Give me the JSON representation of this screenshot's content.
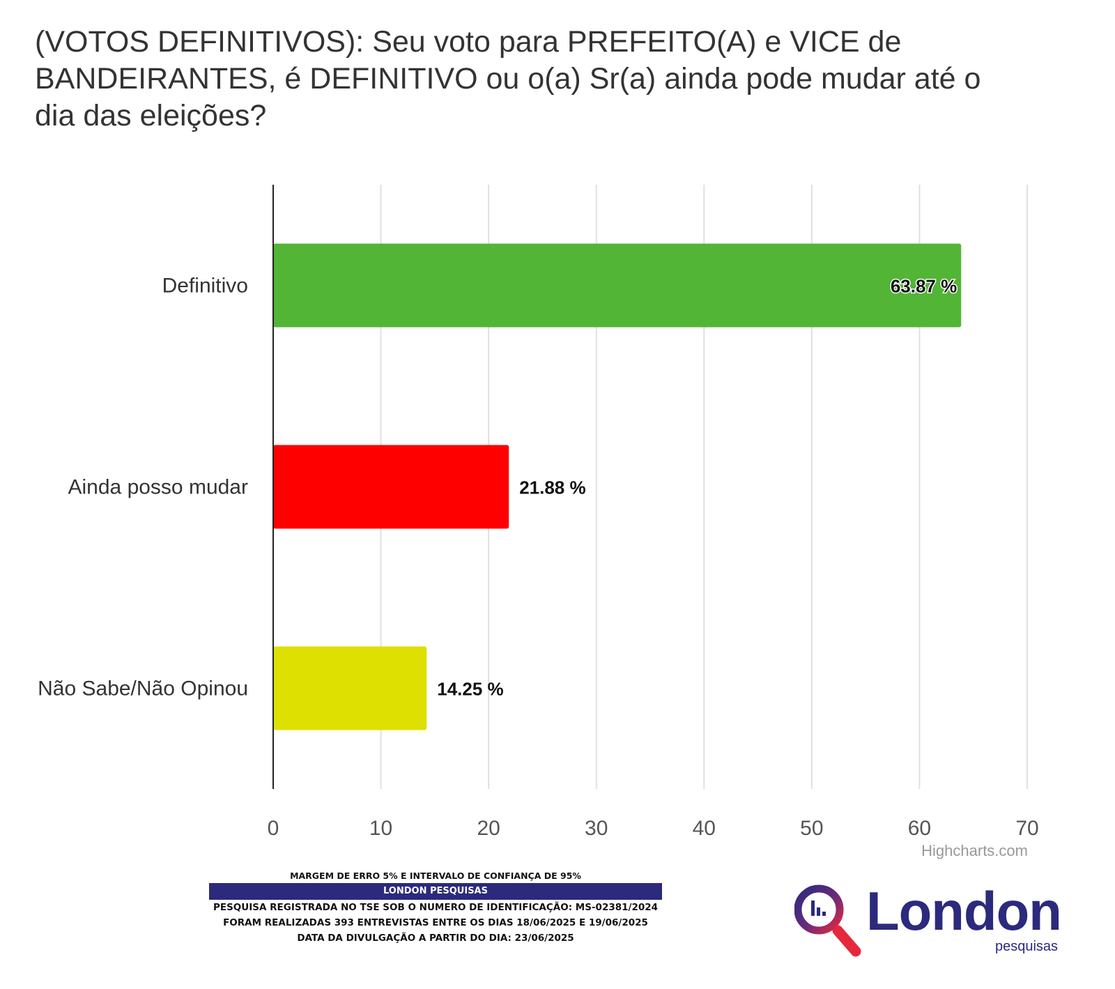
{
  "chart_data": {
    "type": "bar",
    "orientation": "horizontal",
    "title": "(VOTOS DEFINITIVOS): Seu voto para PREFEITO(A) e VICE de BANDEIRANTES, é DEFINITIVO ou o(a) Sr(a) ainda pode mudar até o dia das eleições?",
    "categories": [
      "Definitivo",
      "Ainda posso mudar",
      "Não Sabe/Não Opinou"
    ],
    "values": [
      63.87,
      21.88,
      14.25
    ],
    "data_labels": [
      "63.87 %",
      "21.88 %",
      "14.25 %"
    ],
    "colors": [
      "#52b535",
      "#ff0000",
      "#dde000"
    ],
    "xlim": [
      0,
      70
    ],
    "ticks": [
      0,
      10,
      20,
      30,
      40,
      50,
      60,
      70
    ],
    "xlabel": "",
    "ylabel": "",
    "grid": true,
    "legend": false
  },
  "credits": "Highcharts.com",
  "footer": {
    "margin_text": "MARGEM DE ERRO 5% E INTERVALO DE CONFIANÇA DE 95%",
    "company_band": "LONDON PESQUISAS",
    "registration": "PESQUISA REGISTRADA NO TSE SOB O NUMERO DE IDENTIFICAÇÃO: MS-02381/2024",
    "interviews": "FORAM REALIZADAS 393 ENTREVISTAS ENTRE OS DIAS 18/06/2025 E 19/06/2025",
    "release_date": "DATA DA DIVULGAÇÃO A PARTIR DO DIA: 23/06/2025"
  },
  "logo": {
    "name": "London",
    "subtitle": "pesquisas",
    "brand_color": "#2b2a7c",
    "accent_color": "#e6283c",
    "icon": "magnifier-chart-icon"
  }
}
